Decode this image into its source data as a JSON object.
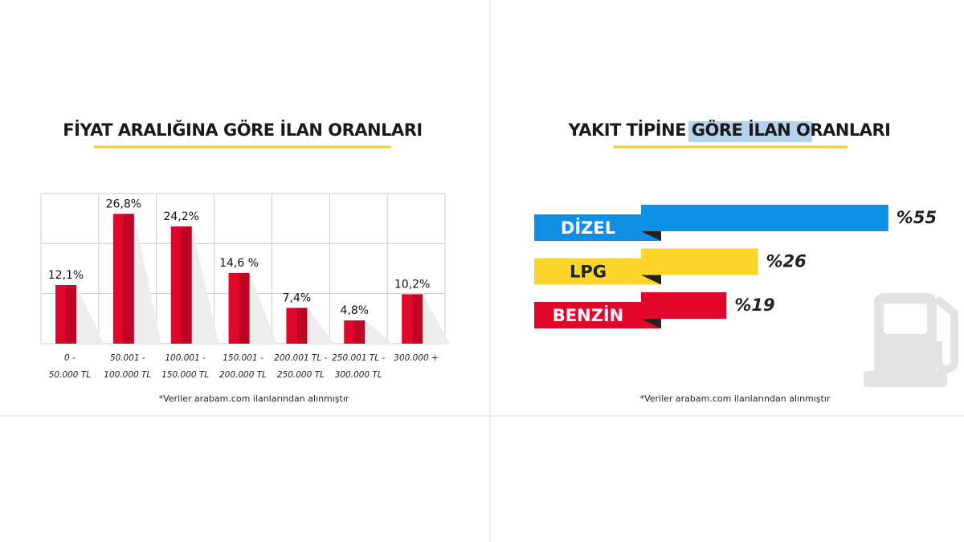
{
  "chart_data": [
    {
      "type": "bar",
      "title": "FİYAT ARALIĞINA GÖRE İLAN ORANLARI",
      "categories": [
        "0 -\n50.000 TL",
        "50.001 -\n100.000 TL",
        "100.001 -\n150.000 TL",
        "150.001 -\n200.000 TL",
        "200.001 TL -\n250.000 TL",
        "250.001 TL -\n300.000 TL",
        "300.000 +"
      ],
      "values": [
        12.1,
        26.8,
        24.2,
        14.6,
        7.4,
        4.8,
        10.2
      ],
      "value_labels": [
        "12,1%",
        "26,8%",
        "24,2%",
        "14,6 %",
        "7,4%",
        "4,8%",
        "10,2%"
      ],
      "color": "#e2062b",
      "ylim": [
        0,
        31
      ],
      "grid": true,
      "footnote": "*Veriler arabam.com ilanlarından alınmıştır"
    },
    {
      "type": "barh",
      "title": "YAKIT TİPİNE GÖRE İLAN ORANLARI",
      "categories": [
        "DİZEL",
        "LPG",
        "BENZİN"
      ],
      "values": [
        55,
        26,
        19
      ],
      "value_labels": [
        "%55",
        "%26",
        "%19"
      ],
      "colors": [
        "#0f8fe3",
        "#fbd52a",
        "#e2062b"
      ],
      "xlim": [
        0,
        57
      ],
      "footnote": "*Veriler arabam.com ilanlarından alınmıştır"
    }
  ]
}
